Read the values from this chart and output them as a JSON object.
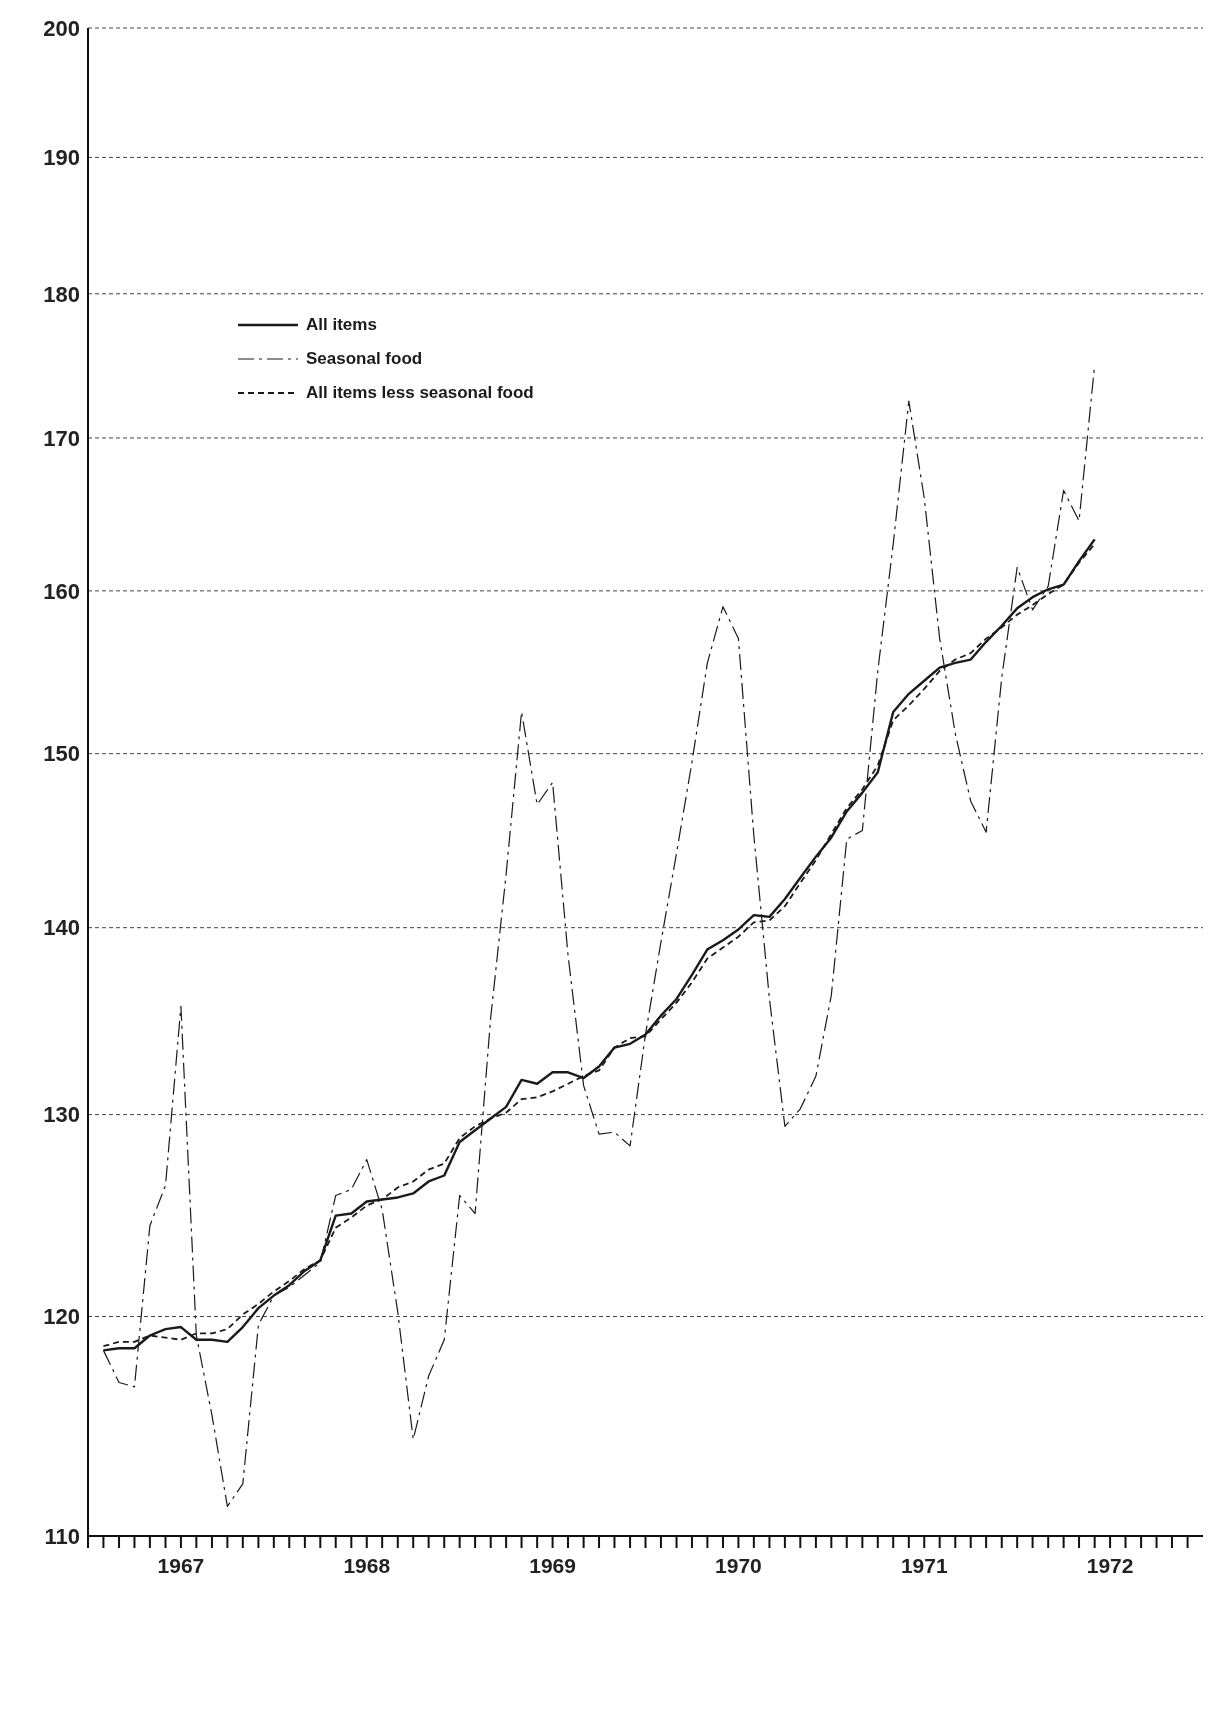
{
  "chart_data": {
    "type": "line",
    "log": true,
    "grid": "y",
    "legend": "top left",
    "marker": "none",
    "xlim": [
      1967,
      1973
    ],
    "ylim": [
      110,
      200
    ],
    "yticks": [
      110,
      120,
      130,
      140,
      150,
      160,
      170,
      180,
      190,
      200
    ],
    "xticks": [
      {
        "value": 1967,
        "label": null
      },
      {
        "value": 1967.083,
        "label": null
      },
      {
        "value": 1967.167,
        "label": null
      },
      {
        "value": 1967.25,
        "label": null
      },
      {
        "value": 1967.333,
        "label": null
      },
      {
        "value": 1967.417,
        "label": null
      },
      {
        "value": 1967.5,
        "label": "1967"
      },
      {
        "value": 1967.583,
        "label": null
      },
      {
        "value": 1967.667,
        "label": null
      },
      {
        "value": 1967.75,
        "label": null
      },
      {
        "value": 1967.833,
        "label": null
      },
      {
        "value": 1967.917,
        "label": null
      },
      {
        "value": 1968,
        "label": null
      },
      {
        "value": 1968.083,
        "label": null
      },
      {
        "value": 1968.167,
        "label": null
      },
      {
        "value": 1968.25,
        "label": null
      },
      {
        "value": 1968.333,
        "label": null
      },
      {
        "value": 1968.417,
        "label": null
      },
      {
        "value": 1968.5,
        "label": "1968"
      },
      {
        "value": 1968.583,
        "label": null
      },
      {
        "value": 1968.667,
        "label": null
      },
      {
        "value": 1968.75,
        "label": null
      },
      {
        "value": 1968.833,
        "label": null
      },
      {
        "value": 1968.917,
        "label": null
      },
      {
        "value": 1969,
        "label": null
      },
      {
        "value": 1969.083,
        "label": null
      },
      {
        "value": 1969.167,
        "label": null
      },
      {
        "value": 1969.25,
        "label": null
      },
      {
        "value": 1969.333,
        "label": null
      },
      {
        "value": 1969.417,
        "label": null
      },
      {
        "value": 1969.5,
        "label": "1969"
      },
      {
        "value": 1969.583,
        "label": null
      },
      {
        "value": 1969.667,
        "label": null
      },
      {
        "value": 1969.75,
        "label": null
      },
      {
        "value": 1969.833,
        "label": null
      },
      {
        "value": 1969.917,
        "label": null
      },
      {
        "value": 1970,
        "label": null
      },
      {
        "value": 1970.083,
        "label": null
      },
      {
        "value": 1970.167,
        "label": null
      },
      {
        "value": 1970.25,
        "label": null
      },
      {
        "value": 1970.333,
        "label": null
      },
      {
        "value": 1970.417,
        "label": null
      },
      {
        "value": 1970.5,
        "label": "1970"
      },
      {
        "value": 1970.583,
        "label": null
      },
      {
        "value": 1970.667,
        "label": null
      },
      {
        "value": 1970.75,
        "label": null
      },
      {
        "value": 1970.833,
        "label": null
      },
      {
        "value": 1970.917,
        "label": null
      },
      {
        "value": 1971,
        "label": null
      },
      {
        "value": 1971.083,
        "label": null
      },
      {
        "value": 1971.167,
        "label": null
      },
      {
        "value": 1971.25,
        "label": null
      },
      {
        "value": 1971.333,
        "label": null
      },
      {
        "value": 1971.417,
        "label": null
      },
      {
        "value": 1971.5,
        "label": "1971"
      },
      {
        "value": 1971.583,
        "label": null
      },
      {
        "value": 1971.667,
        "label": null
      },
      {
        "value": 1971.75,
        "label": null
      },
      {
        "value": 1971.833,
        "label": null
      },
      {
        "value": 1971.917,
        "label": null
      },
      {
        "value": 1972,
        "label": null
      },
      {
        "value": 1972.083,
        "label": null
      },
      {
        "value": 1972.167,
        "label": null
      },
      {
        "value": 1972.25,
        "label": null
      },
      {
        "value": 1972.333,
        "label": null
      },
      {
        "value": 1972.417,
        "label": null
      },
      {
        "value": 1972.5,
        "label": "1972"
      },
      {
        "value": 1972.583,
        "label": null
      },
      {
        "value": 1972.667,
        "label": null
      },
      {
        "value": 1972.75,
        "label": null
      },
      {
        "value": 1972.833,
        "label": null
      },
      {
        "value": 1972.917,
        "label": null
      }
    ],
    "x": [
      1967.083,
      1967.167,
      1967.25,
      1967.333,
      1967.417,
      1967.5,
      1967.583,
      1967.667,
      1967.75,
      1967.833,
      1967.917,
      1968,
      1968.083,
      1968.167,
      1968.25,
      1968.333,
      1968.417,
      1968.5,
      1968.583,
      1968.667,
      1968.75,
      1968.833,
      1968.917,
      1969,
      1969.083,
      1969.167,
      1969.25,
      1969.333,
      1969.417,
      1969.5,
      1969.583,
      1969.667,
      1969.75,
      1969.833,
      1969.917,
      1970,
      1970.083,
      1970.167,
      1970.25,
      1970.333,
      1970.417,
      1970.5,
      1970.583,
      1970.667,
      1970.75,
      1970.833,
      1970.917,
      1971,
      1971.083,
      1971.167,
      1971.25,
      1971.333,
      1971.417,
      1971.5,
      1971.583,
      1971.667,
      1971.75,
      1971.833,
      1971.917,
      1972,
      1972.083,
      1972.167,
      1972.25,
      1972.333,
      1972.417
    ],
    "series": [
      {
        "name": "All items",
        "color": "#1a1a1a",
        "line_style": "solid",
        "values": [
          118.4,
          118.5,
          118.5,
          119.1,
          119.4,
          119.5,
          118.9,
          118.9,
          118.8,
          119.5,
          120.4,
          121.0,
          121.5,
          122.2,
          122.7,
          124.9,
          125.0,
          125.6,
          125.7,
          125.8,
          126.0,
          126.6,
          126.9,
          128.6,
          129.2,
          129.8,
          130.4,
          131.8,
          131.6,
          132.2,
          132.2,
          131.9,
          132.5,
          133.5,
          133.7,
          134.2,
          135.2,
          136.1,
          137.4,
          138.8,
          139.3,
          139.9,
          140.7,
          140.6,
          141.6,
          142.8,
          144.0,
          145.1,
          146.6,
          147.7,
          148.9,
          152.5,
          153.6,
          154.4,
          155.2,
          155.5,
          155.7,
          156.8,
          157.8,
          158.9,
          159.6,
          160.1,
          160.4,
          161.9,
          163.3
        ]
      },
      {
        "name": "Seasonal food",
        "color": "#1a1a1a",
        "line_style": "dashdot",
        "values": [
          118.4,
          116.9,
          116.7,
          124.4,
          126.4,
          135.7,
          119.1,
          115.4,
          111.3,
          112.3,
          119.6,
          121.0,
          121.4,
          122.0,
          122.6,
          125.9,
          126.2,
          127.7,
          125.2,
          120.2,
          114.3,
          117.2,
          118.9,
          125.9,
          125.0,
          135.1,
          143.0,
          152.5,
          147.0,
          148.3,
          138.5,
          131.5,
          129.0,
          129.1,
          128.4,
          134.2,
          139.2,
          144.2,
          149.5,
          155.5,
          159.0,
          157.0,
          145.2,
          136.1,
          129.4,
          130.3,
          132.0,
          136.3,
          145.0,
          145.5,
          155.0,
          163.0,
          172.5,
          166.0,
          157.0,
          151.2,
          147.2,
          145.4,
          154.6,
          161.5,
          158.8,
          160.3,
          166.5,
          164.5,
          175.0
        ]
      },
      {
        "name": "All items less seasonal food",
        "color": "#1a1a1a",
        "line_style": "dashed",
        "values": [
          118.6,
          118.8,
          118.8,
          119.1,
          119.0,
          118.9,
          119.2,
          119.2,
          119.4,
          120.1,
          120.6,
          121.2,
          121.7,
          122.3,
          122.7,
          124.3,
          124.8,
          125.4,
          125.7,
          126.3,
          126.6,
          127.2,
          127.5,
          128.8,
          129.4,
          129.8,
          130.1,
          130.8,
          130.9,
          131.2,
          131.6,
          132.0,
          132.3,
          133.5,
          134.0,
          134.1,
          135.0,
          135.9,
          137.0,
          138.3,
          138.9,
          139.5,
          140.3,
          140.4,
          141.2,
          142.5,
          143.8,
          145.3,
          146.8,
          147.9,
          149.3,
          152.0,
          152.9,
          153.9,
          155.0,
          155.7,
          156.1,
          157.0,
          157.7,
          158.5,
          159.1,
          159.8,
          160.4,
          161.8,
          163.0
        ]
      }
    ]
  }
}
